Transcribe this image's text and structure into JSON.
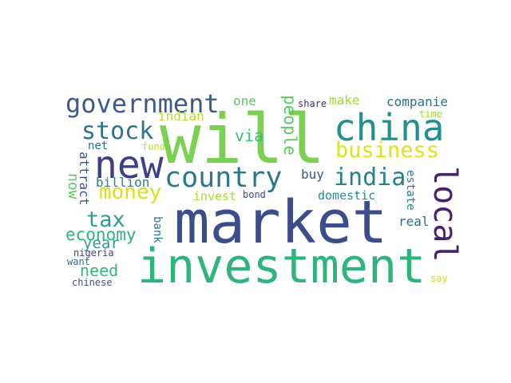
{
  "words": [
    {
      "id": "word-will",
      "text": "will",
      "color": "#7ad151"
    },
    {
      "id": "word-market",
      "text": "market",
      "color": "#3b4d8a"
    },
    {
      "id": "word-investment",
      "text": "investment",
      "color": "#2fb47c"
    },
    {
      "id": "word-china",
      "text": "china",
      "color": "#21918c"
    },
    {
      "id": "word-new",
      "text": "new",
      "color": "#3f3e86"
    },
    {
      "id": "word-government",
      "text": "government",
      "color": "#3c5b8b"
    },
    {
      "id": "word-country",
      "text": "country",
      "color": "#2a788e"
    },
    {
      "id": "word-local",
      "text": "local",
      "color": "#46226e"
    },
    {
      "id": "word-stock",
      "text": "stock",
      "color": "#2d728e"
    },
    {
      "id": "word-business",
      "text": "business",
      "color": "#dde318"
    },
    {
      "id": "word-india",
      "text": "india",
      "color": "#27808e"
    },
    {
      "id": "word-money",
      "text": "money",
      "color": "#d8e219"
    },
    {
      "id": "word-tax",
      "text": "tax",
      "color": "#2a9d8f"
    },
    {
      "id": "word-economy",
      "text": "economy",
      "color": "#2fb47c"
    },
    {
      "id": "word-year",
      "text": "year",
      "color": "#2a9d8f"
    },
    {
      "id": "word-people",
      "text": "people",
      "color": "#5ec962"
    },
    {
      "id": "word-via",
      "text": "via",
      "color": "#3fbc73"
    },
    {
      "id": "word-need",
      "text": "need",
      "color": "#35b779"
    },
    {
      "id": "word-now",
      "text": "now",
      "color": "#5ec962"
    },
    {
      "id": "word-indian",
      "text": "indian",
      "color": "#b5de2b"
    },
    {
      "id": "word-make",
      "text": "make",
      "color": "#a0da39"
    },
    {
      "id": "word-one",
      "text": "one",
      "color": "#5ec962"
    },
    {
      "id": "word-companie",
      "text": "companie",
      "color": "#2c738e"
    },
    {
      "id": "word-share",
      "text": "share",
      "color": "#482878"
    },
    {
      "id": "word-time",
      "text": "time",
      "color": "#9fda3a"
    },
    {
      "id": "word-billion",
      "text": "billion",
      "color": "#25848e"
    },
    {
      "id": "word-net",
      "text": "net",
      "color": "#2d708e"
    },
    {
      "id": "word-fund",
      "text": "fund",
      "color": "#c2df23"
    },
    {
      "id": "word-attract",
      "text": "attract",
      "color": "#3b528b"
    },
    {
      "id": "word-buy",
      "text": "buy",
      "color": "#3a548c"
    },
    {
      "id": "word-estate",
      "text": "estate",
      "color": "#29798e"
    },
    {
      "id": "word-domestic",
      "text": "domestic",
      "color": "#218f8d"
    },
    {
      "id": "word-invest",
      "text": "invest",
      "color": "#a8db34"
    },
    {
      "id": "word-bond",
      "text": "bond",
      "color": "#3e4989"
    },
    {
      "id": "word-bank",
      "text": "bank",
      "color": "#277e8e"
    },
    {
      "id": "word-real",
      "text": "real",
      "color": "#2f6c8e"
    },
    {
      "id": "word-nigeria",
      "text": "nigeria",
      "color": "#433e85"
    },
    {
      "id": "word-want",
      "text": "want",
      "color": "#31688e"
    },
    {
      "id": "word-chinese",
      "text": "chinese",
      "color": "#3b528b"
    },
    {
      "id": "word-say",
      "text": "say",
      "color": "#c8e020"
    }
  ]
}
